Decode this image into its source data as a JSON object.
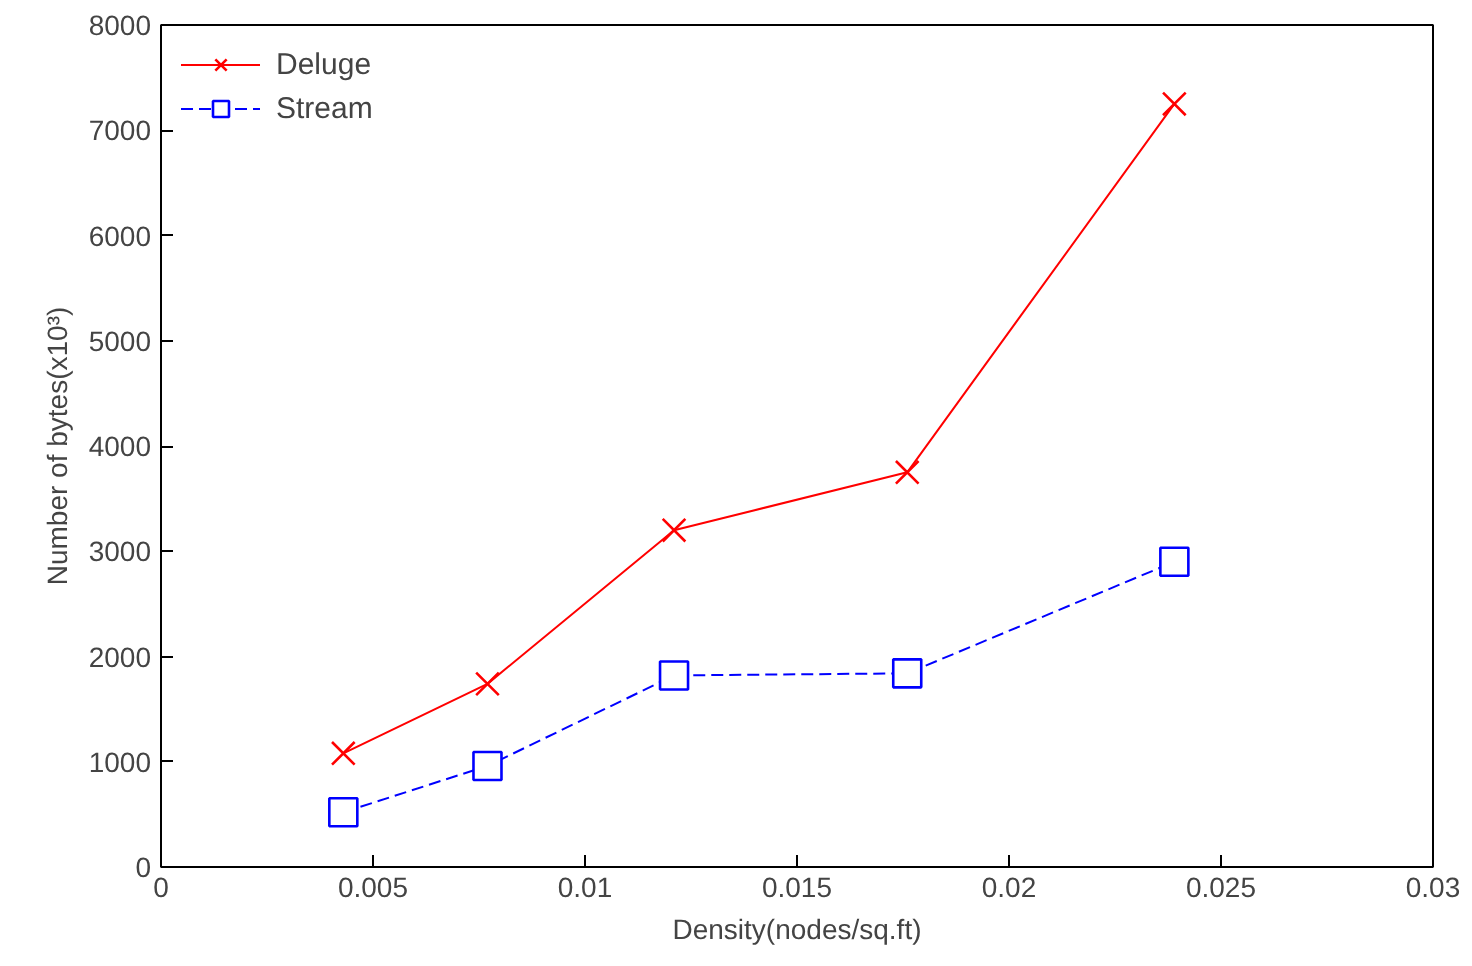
{
  "chart_data": {
    "type": "line",
    "xlabel": "Density(nodes/sq.ft)",
    "ylabel": "Number of bytes(x10³)",
    "xlim": [
      0,
      0.03
    ],
    "xticks": [
      0,
      0.005,
      0.01,
      0.015,
      0.02,
      0.025,
      0.03
    ],
    "ylim": [
      0,
      8000
    ],
    "yticks": [
      0,
      1000,
      2000,
      3000,
      4000,
      5000,
      6000,
      7000,
      8000
    ],
    "grid": false,
    "legend": "top left",
    "series": [
      {
        "name": "Deluge",
        "color": "#ff0000",
        "marker": "cross",
        "line_style": "solid",
        "x": [
          0.0043,
          0.0077,
          0.0121,
          0.0176,
          0.0239
        ],
        "values": [
          1080,
          1740,
          3200,
          3750,
          7250
        ]
      },
      {
        "name": "Stream",
        "color": "#0000ff",
        "marker": "square",
        "line_style": "dashed",
        "x": [
          0.0043,
          0.0077,
          0.0121,
          0.0176,
          0.0239
        ],
        "values": [
          520,
          960,
          1820,
          1840,
          2900
        ]
      }
    ]
  }
}
